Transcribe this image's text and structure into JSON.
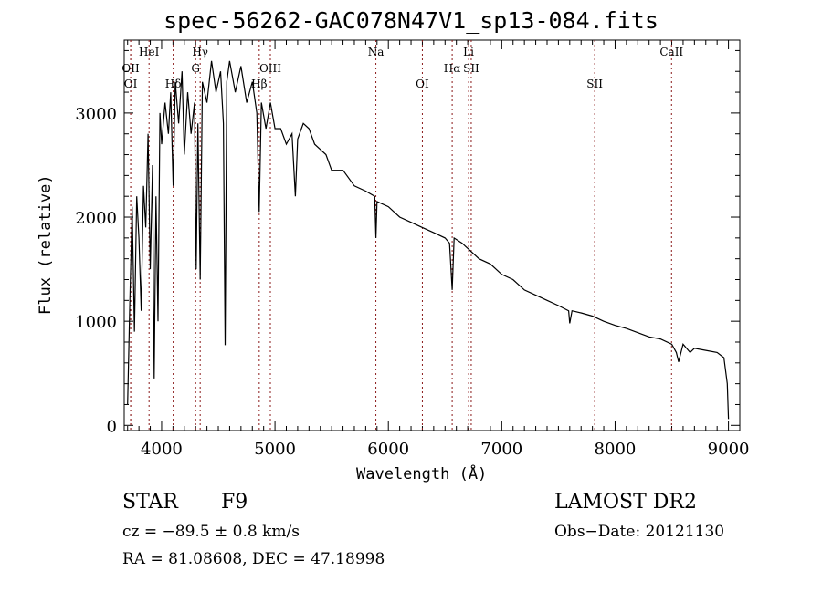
{
  "chart_data": {
    "type": "line",
    "title": "spec-56262-GAC078N47V1_sp13-084.fits",
    "xlabel": "Wavelength (Å)",
    "ylabel": "Flux (relative)",
    "xlim": [
      3670,
      9100
    ],
    "ylim": [
      -50,
      3700
    ],
    "xticks": [
      4000,
      5000,
      6000,
      7000,
      8000,
      9000
    ],
    "yticks": [
      0,
      1000,
      2000,
      3000
    ],
    "grid": false,
    "lines": [
      {
        "name": "OII",
        "wave": 3727,
        "row": 2
      },
      {
        "name": "OI",
        "wave": 3727,
        "row": 3
      },
      {
        "name": "HeI",
        "wave": 3889,
        "row": 1
      },
      {
        "name": "Hδ",
        "wave": 4102,
        "row": 3
      },
      {
        "name": "G",
        "wave": 4300,
        "row": 2
      },
      {
        "name": "Hγ",
        "wave": 4340,
        "row": 1
      },
      {
        "name": "Hβ",
        "wave": 4861,
        "row": 3
      },
      {
        "name": "OIII",
        "wave": 4959,
        "row": 2
      },
      {
        "name": "Na",
        "wave": 5890,
        "row": 1
      },
      {
        "name": "OI",
        "wave": 6300,
        "row": 3
      },
      {
        "name": "Hα",
        "wave": 6563,
        "row": 2
      },
      {
        "name": "Li",
        "wave": 6708,
        "row": 1
      },
      {
        "name": "SII",
        "wave": 6731,
        "row": 2
      },
      {
        "name": "SII",
        "wave": 7820,
        "row": 3
      },
      {
        "name": "CaII",
        "wave": 8498,
        "row": 1
      }
    ],
    "series": [
      {
        "name": "flux",
        "x": [
          3700,
          3720,
          3740,
          3760,
          3780,
          3800,
          3820,
          3840,
          3860,
          3880,
          3900,
          3920,
          3934,
          3950,
          3968,
          3985,
          4000,
          4030,
          4060,
          4080,
          4102,
          4120,
          4150,
          4180,
          4200,
          4230,
          4260,
          4290,
          4305,
          4320,
          4340,
          4360,
          4400,
          4440,
          4480,
          4520,
          4545,
          4560,
          4575,
          4600,
          4650,
          4700,
          4750,
          4800,
          4840,
          4861,
          4880,
          4920,
          4960,
          5000,
          5050,
          5100,
          5150,
          5180,
          5200,
          5250,
          5300,
          5350,
          5400,
          5450,
          5500,
          5600,
          5700,
          5800,
          5880,
          5890,
          5900,
          6000,
          6100,
          6200,
          6300,
          6400,
          6500,
          6540,
          6563,
          6580,
          6650,
          6700,
          6800,
          6900,
          7000,
          7100,
          7200,
          7300,
          7400,
          7500,
          7590,
          7600,
          7620,
          7700,
          7800,
          7900,
          8000,
          8100,
          8200,
          8300,
          8400,
          8500,
          8540,
          8560,
          8600,
          8662,
          8700,
          8800,
          8900,
          8960,
          8990,
          9000
        ],
        "y": [
          200,
          1200,
          2100,
          900,
          2200,
          1800,
          1100,
          2300,
          1900,
          2800,
          1500,
          2500,
          450,
          2200,
          1000,
          3000,
          2700,
          3100,
          2800,
          3200,
          2300,
          3300,
          2900,
          3400,
          2600,
          3200,
          2800,
          3100,
          1500,
          2900,
          1400,
          3300,
          3100,
          3500,
          3200,
          3400,
          2900,
          770,
          3300,
          3500,
          3200,
          3450,
          3100,
          3300,
          3000,
          2050,
          3100,
          2850,
          3100,
          2850,
          2850,
          2700,
          2800,
          2200,
          2750,
          2900,
          2850,
          2700,
          2650,
          2600,
          2450,
          2450,
          2300,
          2250,
          2200,
          1800,
          2150,
          2100,
          2000,
          1950,
          1900,
          1850,
          1800,
          1750,
          1300,
          1800,
          1750,
          1700,
          1600,
          1550,
          1450,
          1400,
          1300,
          1250,
          1200,
          1150,
          1100,
          980,
          1100,
          1080,
          1050,
          1000,
          960,
          930,
          890,
          850,
          830,
          780,
          700,
          610,
          780,
          700,
          740,
          720,
          700,
          650,
          400,
          60
        ]
      }
    ]
  },
  "footer": {
    "object": "STAR",
    "subclass": "F9",
    "cz": "cz = −89.5 ± 0.8 km/s",
    "coords": "RA =  81.08608, DEC =  47.18998",
    "survey": "LAMOST DR2",
    "obsdate": "Obs−Date: 20121130"
  }
}
